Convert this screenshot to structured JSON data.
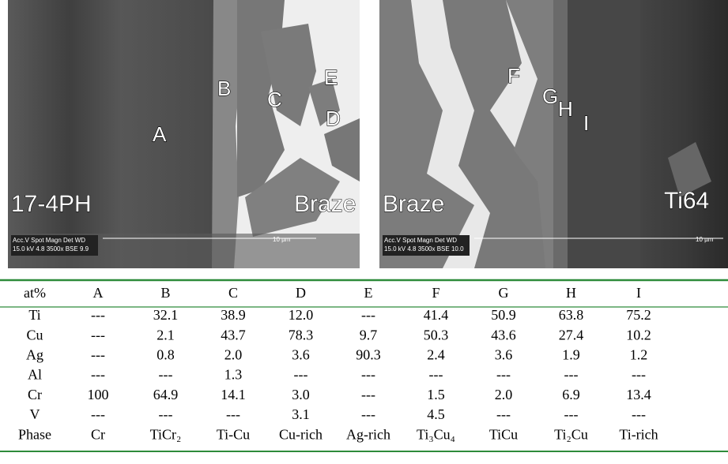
{
  "images": [
    {
      "labels": [
        "A",
        "B",
        "C",
        "D",
        "E"
      ],
      "sample": "17-4PH",
      "region": "Braze",
      "info_line1": "Acc.V  Spot Magn    Det  WD",
      "info_line2": "15.0 kV 4.8   3500x    BSE  9.9",
      "scale": "10 µm"
    },
    {
      "labels": [
        "F",
        "G",
        "H",
        "I"
      ],
      "sample": "Ti64",
      "region": "Braze",
      "info_line1": "Acc.V  Spot Magn    Det  WD",
      "info_line2": "15.0 kV 4.8   3500x    BSE  10.0",
      "scale": "10 µm"
    }
  ],
  "table": {
    "header": [
      "at%",
      "A",
      "B",
      "C",
      "D",
      "E",
      "F",
      "G",
      "H",
      "I"
    ],
    "rows": [
      [
        "Ti",
        "---",
        "32.1",
        "38.9",
        "12.0",
        "---",
        "41.4",
        "50.9",
        "63.8",
        "75.2"
      ],
      [
        "Cu",
        "---",
        "2.1",
        "43.7",
        "78.3",
        "9.7",
        "50.3",
        "43.6",
        "27.4",
        "10.2"
      ],
      [
        "Ag",
        "---",
        "0.8",
        "2.0",
        "3.6",
        "90.3",
        "2.4",
        "3.6",
        "1.9",
        "1.2"
      ],
      [
        "Al",
        "---",
        "---",
        "1.3",
        "---",
        "---",
        "---",
        "---",
        "---",
        "---"
      ],
      [
        "Cr",
        "100",
        "64.9",
        "14.1",
        "3.0",
        "---",
        "1.5",
        "2.0",
        "6.9",
        "13.4"
      ],
      [
        "V",
        "---",
        "---",
        "---",
        "3.1",
        "---",
        "4.5",
        "---",
        "---",
        "---"
      ],
      [
        "Phase",
        "Cr",
        "TiCr₂",
        "Ti-Cu",
        "Cu-rich",
        "Ag-rich",
        "Ti₃Cu₄",
        "TiCu",
        "Ti₂Cu",
        "Ti-rich"
      ]
    ]
  }
}
